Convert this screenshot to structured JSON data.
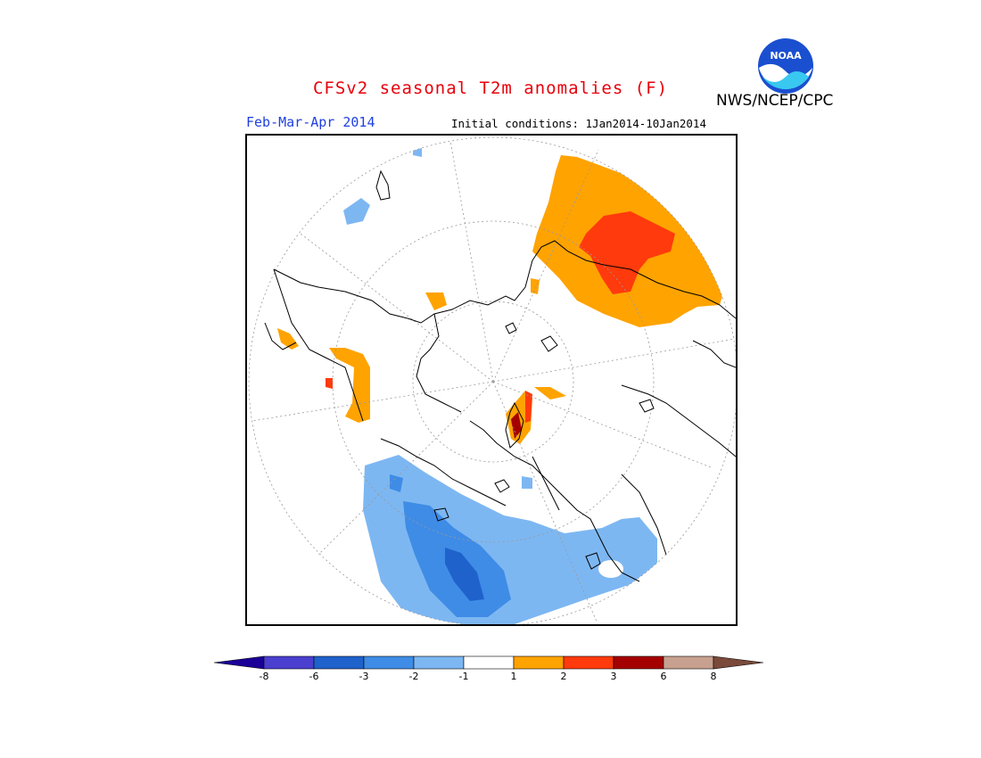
{
  "header": {
    "title": "CFSv2 seasonal T2m anomalies (F)",
    "period": "Feb-Mar-Apr 2014",
    "initial_conditions": "Initial conditions: 1Jan2014-10Jan2014",
    "agency": "NWS/NCEP/CPC",
    "logo_text": "NOAA"
  },
  "legend": {
    "ticks": [
      "-8",
      "-6",
      "-3",
      "-2",
      "-1",
      "1",
      "2",
      "3",
      "6",
      "8"
    ],
    "colors": [
      "#1a0096",
      "#4b3fd0",
      "#1f62cc",
      "#3f8ce6",
      "#7db7f2",
      "#ffffff",
      "#ffa300",
      "#ff3a0c",
      "#a50000",
      "#c8a090",
      "#7a4a3a"
    ]
  },
  "map": {
    "projection": "north-polar-stereographic",
    "anomaly_colors": {
      "warm_1_2": "#ffa300",
      "warm_2_3": "#ff3a0c",
      "warm_3_6": "#a50000",
      "cool_1_2": "#7db7f2",
      "cool_2_3": "#3f8ce6",
      "cool_3_6": "#1f62cc"
    }
  }
}
